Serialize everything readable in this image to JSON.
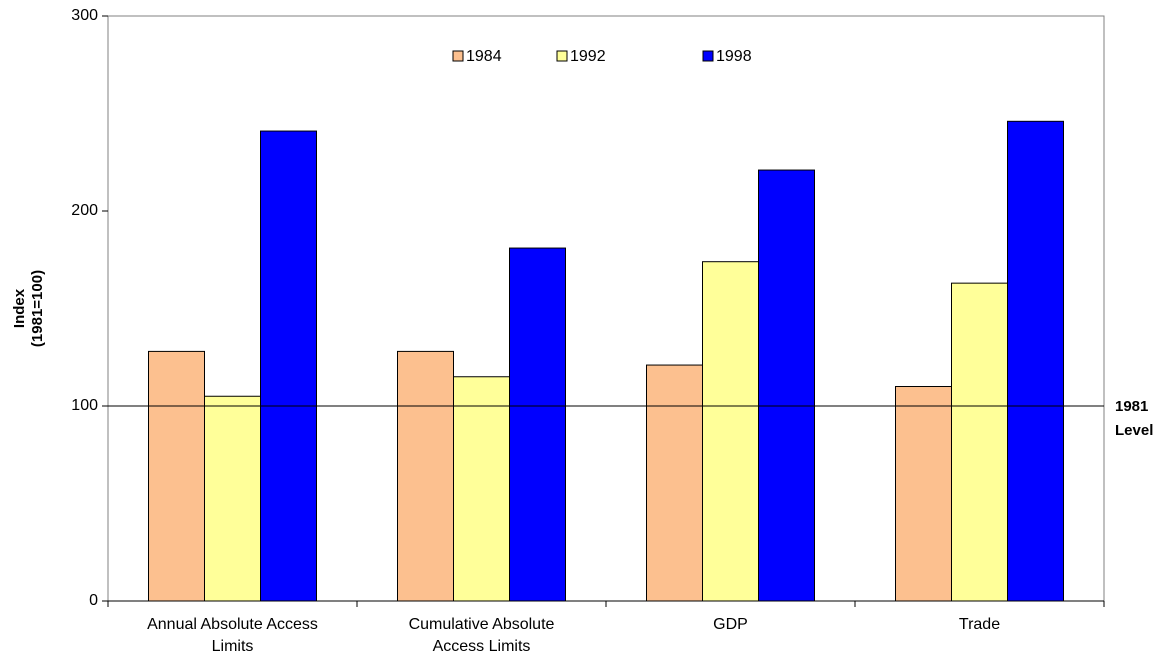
{
  "chart_data": {
    "type": "bar",
    "y_label": [
      "Index",
      "(1981=100)"
    ],
    "categories": [
      [
        "Annual Absolute Access",
        "Limits"
      ],
      [
        "Cumulative Absolute",
        "Access Limits"
      ],
      [
        "GDP"
      ],
      [
        "Trade"
      ]
    ],
    "series": [
      {
        "name": "1984",
        "color": "#fcc08f",
        "values": [
          128,
          128,
          121,
          110
        ]
      },
      {
        "name": "1992",
        "color": "#ffff99",
        "values": [
          105,
          115,
          174,
          163
        ]
      },
      {
        "name": "1998",
        "color": "#0000ff",
        "values": [
          241,
          181,
          221,
          246
        ]
      }
    ],
    "reference_line": {
      "value": 100,
      "label": [
        "1981",
        "Level"
      ]
    },
    "ylim": [
      0,
      300
    ],
    "yticks": [
      0,
      100,
      200,
      300
    ],
    "legend": "top"
  }
}
